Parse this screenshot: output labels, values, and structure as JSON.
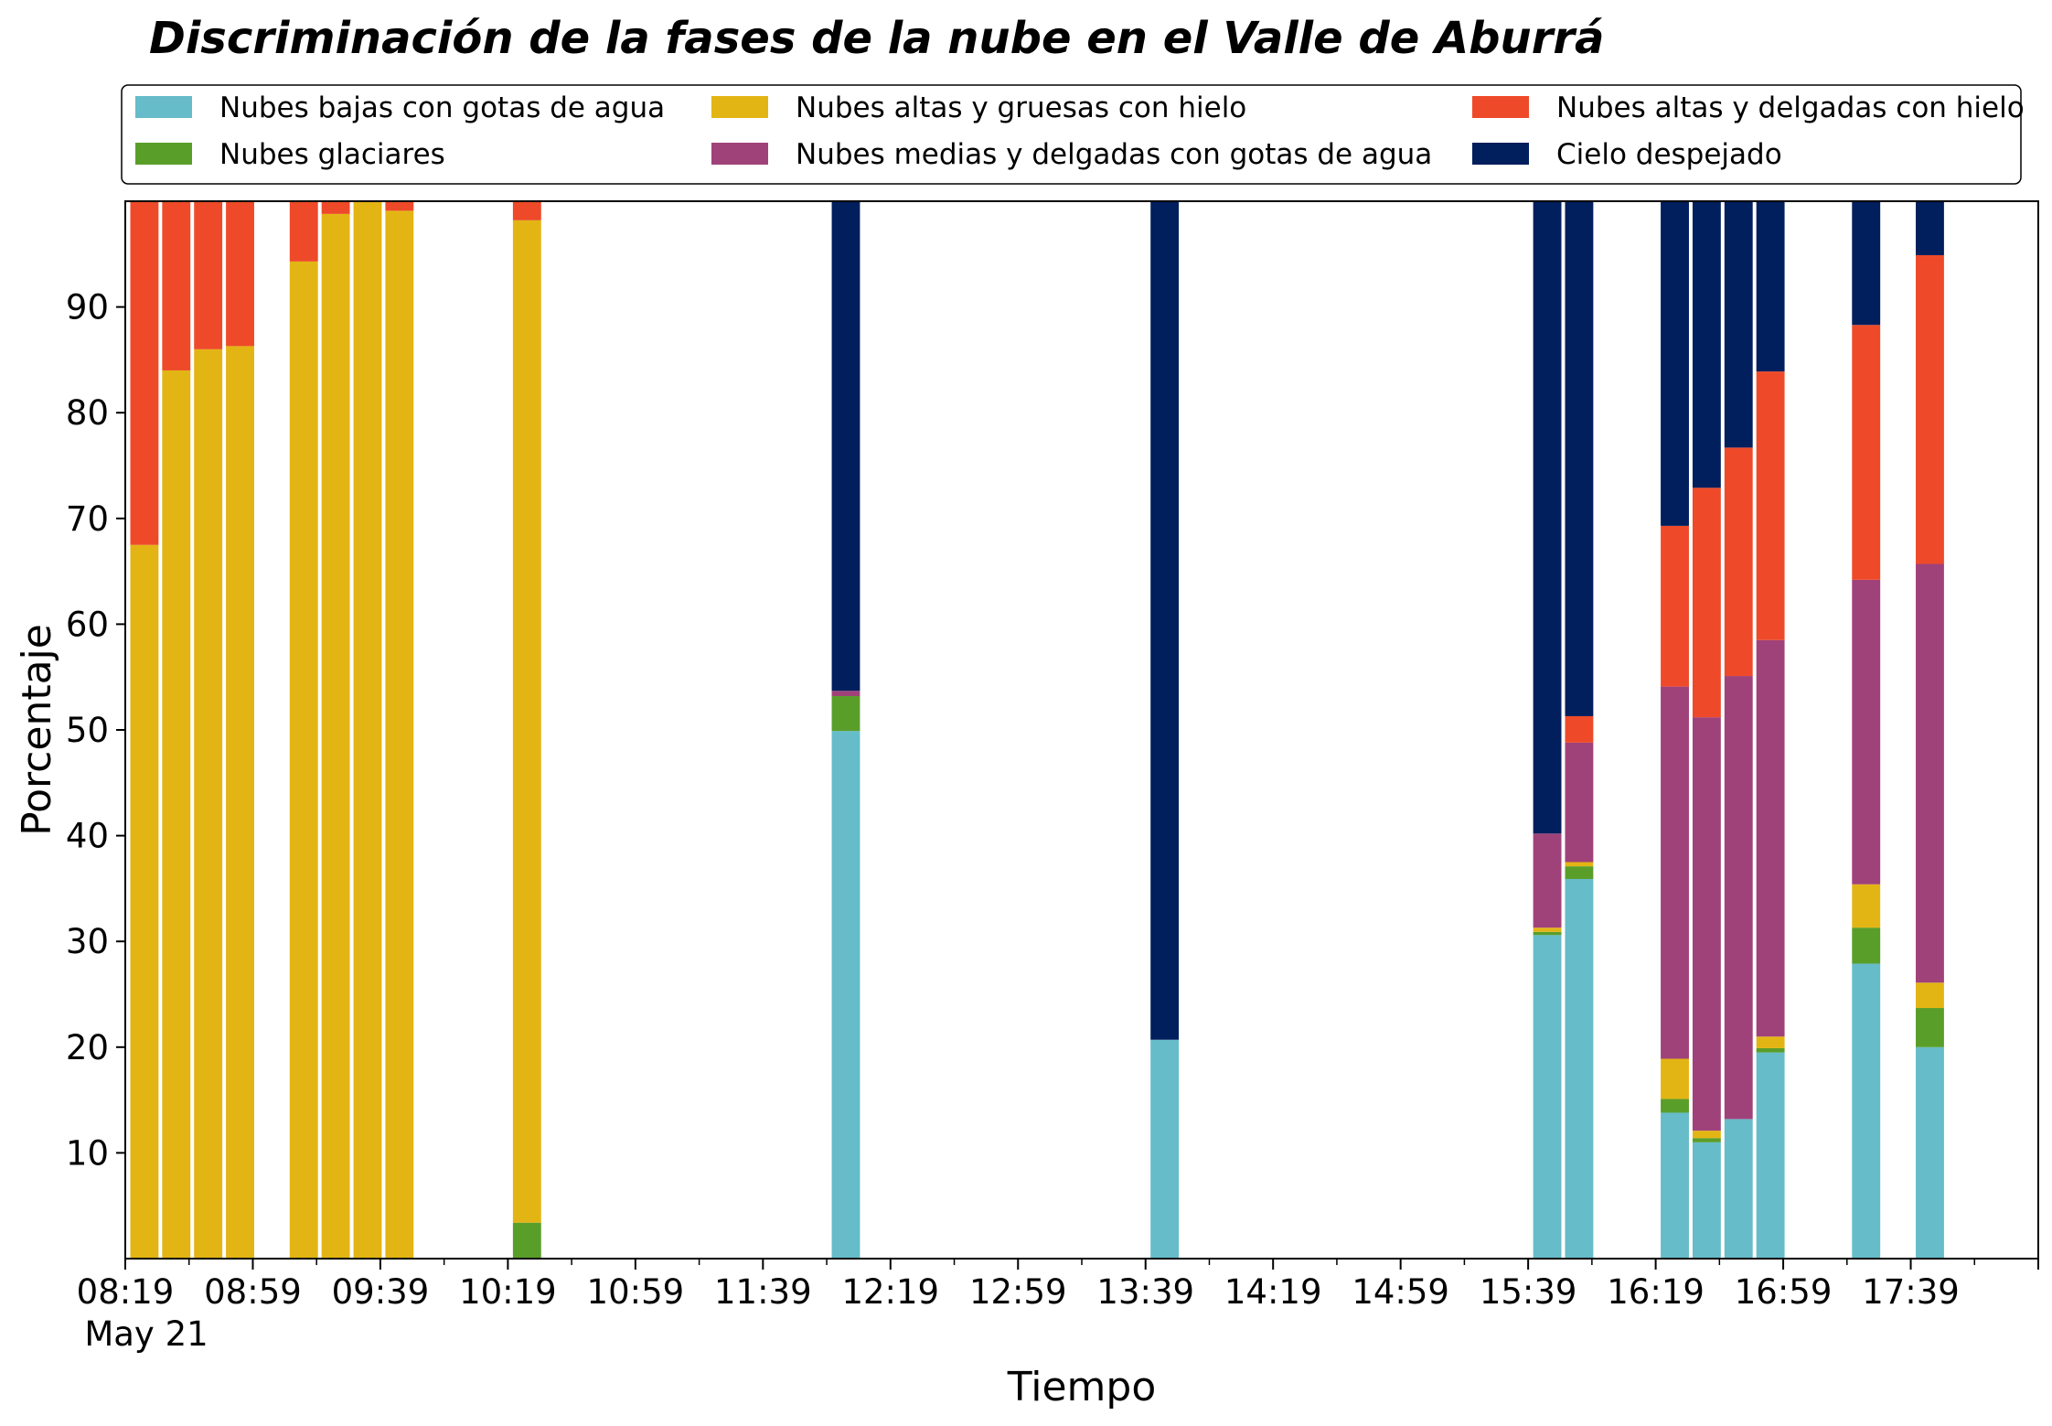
{
  "chart_data": {
    "type": "bar",
    "stacked": true,
    "title": "Discriminación de la fases de la nube en el Valle de Aburrá",
    "xlabel": "Tiempo",
    "ylabel": "Porcentaje",
    "ylim": [
      0,
      100
    ],
    "yticks": [
      10,
      20,
      30,
      40,
      50,
      60,
      70,
      80,
      90
    ],
    "xlim": [
      "08:19",
      "18:19"
    ],
    "date_label": "May 21",
    "xticks": [
      "08:19",
      "08:59",
      "09:39",
      "10:19",
      "10:59",
      "11:39",
      "12:19",
      "12:59",
      "13:39",
      "14:19",
      "14:59",
      "15:39",
      "16:19",
      "16:59",
      "17:39"
    ],
    "grid": false,
    "legend": {
      "position": "top",
      "columns": 3
    },
    "series": [
      {
        "name": "Nubes bajas con gotas de agua",
        "color": "#66BCC9"
      },
      {
        "name": "Nubes glaciares",
        "color": "#5A9E2A"
      },
      {
        "name": "Nubes altas y gruesas con hielo",
        "color": "#E3B514"
      },
      {
        "name": "Nubes medias y delgadas con gotas de agua",
        "color": "#A0427A"
      },
      {
        "name": "Nubes altas y delgadas con hielo",
        "color": "#EE4A29"
      },
      {
        "name": "Cielo despejado",
        "color": "#011E5D"
      }
    ],
    "bars": [
      {
        "time": "08:25",
        "values": [
          0,
          0,
          67.5,
          0,
          32.5,
          0
        ]
      },
      {
        "time": "08:35",
        "values": [
          0,
          0,
          84,
          0,
          16,
          0
        ]
      },
      {
        "time": "08:45",
        "values": [
          0,
          0,
          86,
          0,
          14,
          0
        ]
      },
      {
        "time": "08:55",
        "values": [
          0,
          0,
          86.3,
          0,
          13.7,
          0
        ]
      },
      {
        "time": "09:15",
        "values": [
          0,
          0,
          94.3,
          0,
          5.7,
          0
        ]
      },
      {
        "time": "09:25",
        "values": [
          0,
          0,
          98.8,
          0,
          1.2,
          0
        ]
      },
      {
        "time": "09:35",
        "values": [
          0,
          0,
          100,
          0,
          0,
          0
        ]
      },
      {
        "time": "09:45",
        "values": [
          0,
          0,
          99.1,
          0,
          0.9,
          0
        ]
      },
      {
        "time": "10:25",
        "values": [
          0,
          3.4,
          94.8,
          0,
          1.8,
          0
        ]
      },
      {
        "time": "12:05",
        "values": [
          49.9,
          3.3,
          0,
          0.5,
          0,
          46.3
        ]
      },
      {
        "time": "13:45",
        "values": [
          20.7,
          0,
          0,
          0,
          0,
          79.3
        ]
      },
      {
        "time": "15:45",
        "values": [
          30.6,
          0.3,
          0.4,
          8.9,
          0,
          59.8
        ]
      },
      {
        "time": "15:55",
        "values": [
          35.9,
          1.2,
          0.4,
          11.3,
          2.5,
          48.7
        ]
      },
      {
        "time": "16:25",
        "values": [
          13.8,
          1.3,
          3.8,
          35.2,
          15.2,
          30.7
        ]
      },
      {
        "time": "16:35",
        "values": [
          11.0,
          0.4,
          0.7,
          39.1,
          21.7,
          27.1
        ]
      },
      {
        "time": "16:45",
        "values": [
          13.2,
          0,
          0,
          41.9,
          21.6,
          23.3
        ]
      },
      {
        "time": "16:55",
        "values": [
          19.5,
          0.4,
          1.1,
          37.5,
          25.4,
          16.1
        ]
      },
      {
        "time": "17:25",
        "values": [
          27.9,
          3.4,
          4.1,
          28.8,
          24.1,
          11.7
        ]
      },
      {
        "time": "17:45",
        "values": [
          20.0,
          3.7,
          2.4,
          39.6,
          29.2,
          5.1
        ]
      }
    ]
  }
}
